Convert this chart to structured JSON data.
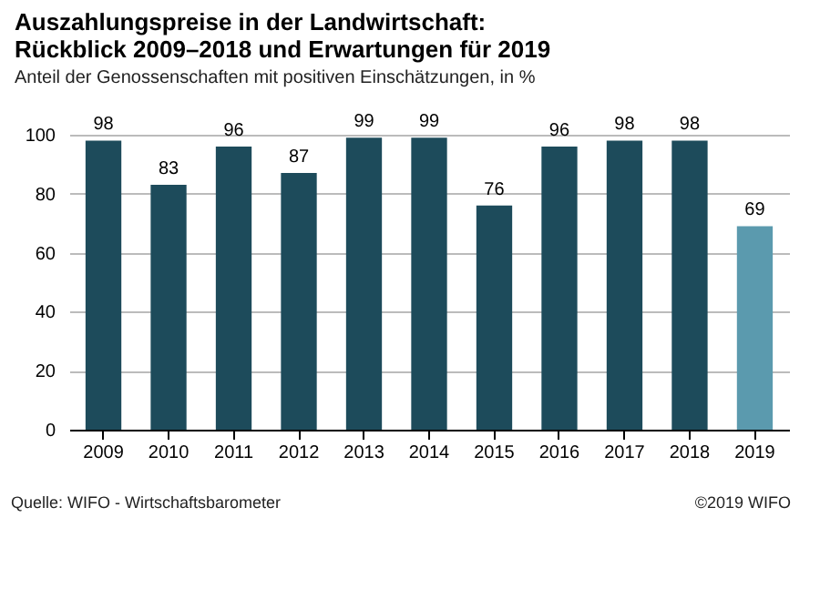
{
  "chart_data": {
    "type": "bar",
    "title": "Auszahlungspreise in der Landwirtschaft:\nRückblick 2009–2018 und Erwartungen für 2019",
    "subtitle": "Anteil der Genossenschaften mit positiven Einschätzungen, in %",
    "categories": [
      "2009",
      "2010",
      "2011",
      "2012",
      "2013",
      "2014",
      "2015",
      "2016",
      "2017",
      "2018",
      "2019"
    ],
    "values": [
      98,
      83,
      96,
      87,
      99,
      99,
      76,
      96,
      98,
      98,
      69
    ],
    "colors": [
      "#1d4b5b",
      "#1d4b5b",
      "#1d4b5b",
      "#1d4b5b",
      "#1d4b5b",
      "#1d4b5b",
      "#1d4b5b",
      "#1d4b5b",
      "#1d4b5b",
      "#1d4b5b",
      "#5b9aae"
    ],
    "ylim": [
      0,
      100
    ],
    "yticks": [
      0,
      20,
      40,
      60,
      80,
      100
    ],
    "grid": "y",
    "data_labels": true,
    "annotations": [
      "Quelle: WIFO - Wirtschaftsbarometer",
      "©2019 WIFO"
    ]
  }
}
